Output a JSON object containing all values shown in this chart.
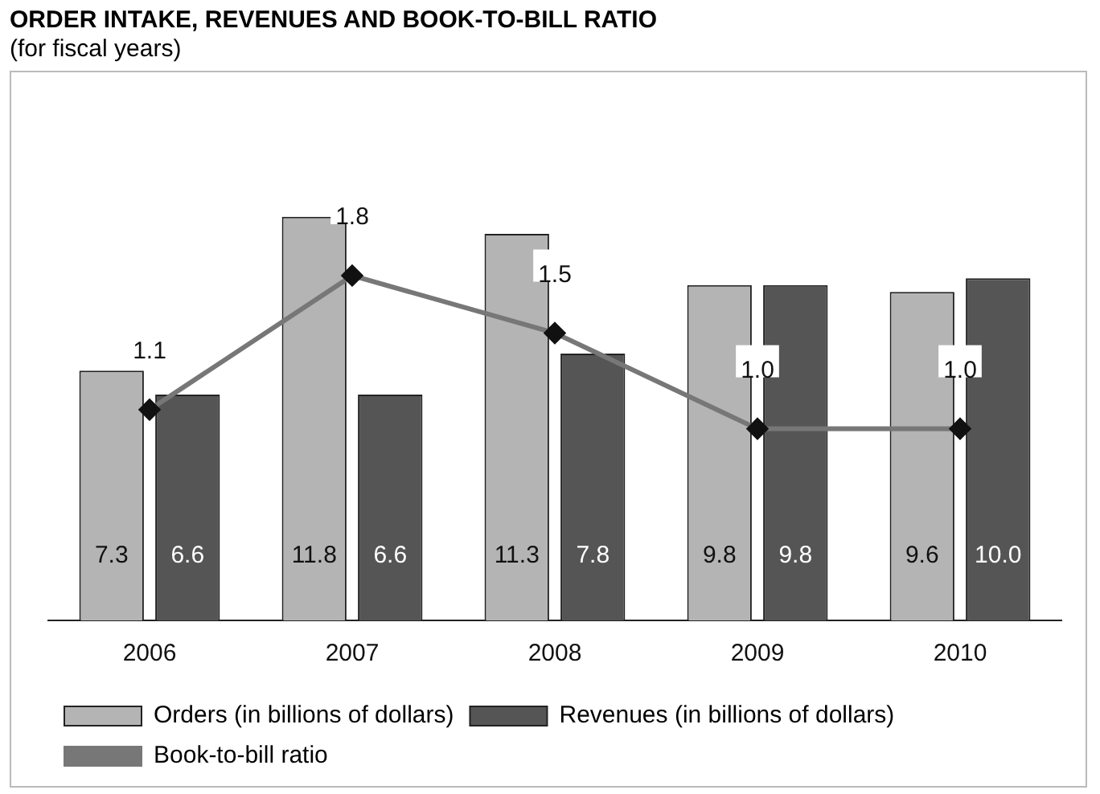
{
  "chart_data": {
    "type": "bar",
    "title": "ORDER INTAKE, REVENUES AND BOOK-TO-BILL RATIO",
    "subtitle": "(for fiscal years)",
    "categories": [
      "2006",
      "2007",
      "2008",
      "2009",
      "2010"
    ],
    "series": [
      {
        "name": "Orders (in billions of dollars)",
        "color": "#b4b4b4",
        "values": [
          7.3,
          11.8,
          11.3,
          9.8,
          9.6
        ],
        "value_labels": [
          "7.3",
          "11.8",
          "11.3",
          "9.8",
          "9.6"
        ]
      },
      {
        "name": "Revenues (in billions of dollars)",
        "color": "#555555",
        "values": [
          6.6,
          6.6,
          7.8,
          9.8,
          10.0
        ],
        "value_labels": [
          "6.6",
          "6.6",
          "7.8",
          "9.8",
          "10.0"
        ]
      },
      {
        "name": "Book-to-bill ratio",
        "type": "line",
        "axis": "y2",
        "color": "#777777",
        "values": [
          1.1,
          1.8,
          1.5,
          1.0,
          1.0
        ],
        "value_labels": [
          "1.1",
          "1.8",
          "1.5",
          "1.0",
          "1.0"
        ]
      }
    ],
    "tick_labels": "x",
    "grid": false,
    "legend": "bottom",
    "marker": "diamond",
    "line_style": "solid"
  }
}
